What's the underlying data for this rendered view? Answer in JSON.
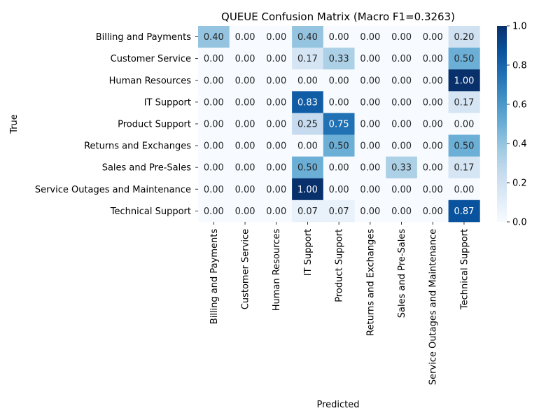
{
  "chart_data": {
    "type": "heatmap",
    "title": "QUEUE Confusion Matrix (Macro F1=0.3263)",
    "xlabel": "Predicted",
    "ylabel": "True",
    "row_labels": [
      "Billing and Payments",
      "Customer Service",
      "Human Resources",
      "IT Support",
      "Product Support",
      "Returns and Exchanges",
      "Sales and Pre-Sales",
      "Service Outages and Maintenance",
      "Technical Support"
    ],
    "col_labels": [
      "Billing and Payments",
      "Customer Service",
      "Human Resources",
      "IT Support",
      "Product Support",
      "Returns and Exchanges",
      "Sales and Pre-Sales",
      "Service Outages and Maintenance",
      "Technical Support"
    ],
    "values": [
      [
        0.4,
        0.0,
        0.0,
        0.4,
        0.0,
        0.0,
        0.0,
        0.0,
        0.2
      ],
      [
        0.0,
        0.0,
        0.0,
        0.17,
        0.33,
        0.0,
        0.0,
        0.0,
        0.5
      ],
      [
        0.0,
        0.0,
        0.0,
        0.0,
        0.0,
        0.0,
        0.0,
        0.0,
        1.0
      ],
      [
        0.0,
        0.0,
        0.0,
        0.83,
        0.0,
        0.0,
        0.0,
        0.0,
        0.17
      ],
      [
        0.0,
        0.0,
        0.0,
        0.25,
        0.75,
        0.0,
        0.0,
        0.0,
        0.0
      ],
      [
        0.0,
        0.0,
        0.0,
        0.0,
        0.5,
        0.0,
        0.0,
        0.0,
        0.5
      ],
      [
        0.0,
        0.0,
        0.0,
        0.5,
        0.0,
        0.0,
        0.33,
        0.0,
        0.17
      ],
      [
        0.0,
        0.0,
        0.0,
        1.0,
        0.0,
        0.0,
        0.0,
        0.0,
        0.0
      ],
      [
        0.0,
        0.0,
        0.0,
        0.07,
        0.07,
        0.0,
        0.0,
        0.0,
        0.87
      ]
    ],
    "colorbar": {
      "colormap": "Blues",
      "range": [
        0.0,
        1.0
      ],
      "ticks": [
        "0.0",
        "0.2",
        "0.4",
        "0.6",
        "0.8",
        "1.0"
      ]
    },
    "value_format": "2 decimals"
  }
}
